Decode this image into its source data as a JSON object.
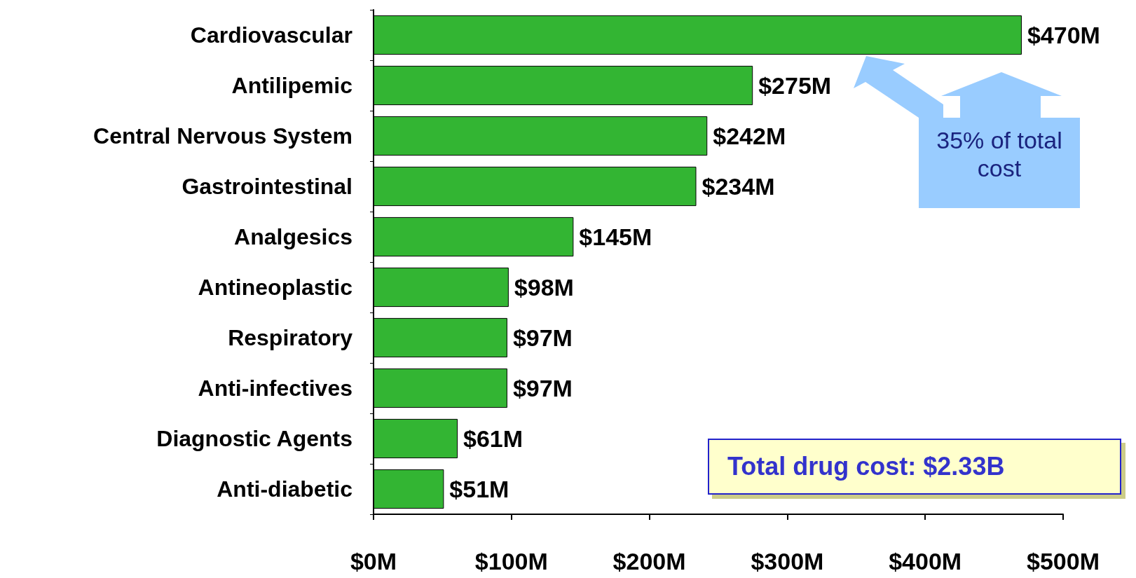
{
  "chart_data": {
    "type": "bar",
    "orientation": "horizontal",
    "categories": [
      "Cardiovascular",
      "Antilipemic",
      "Central Nervous System",
      "Gastrointestinal",
      "Analgesics",
      "Antineoplastic",
      "Respiratory",
      "Anti-infectives",
      "Diagnostic Agents",
      "Anti-diabetic"
    ],
    "values": [
      470,
      275,
      242,
      234,
      145,
      98,
      97,
      97,
      61,
      51
    ],
    "value_labels": [
      "$470M",
      "$275M",
      "$242M",
      "$234M",
      "$145M",
      "$98M",
      "$97M",
      "$97M",
      "$61M",
      "$51M"
    ],
    "color": "#33b533",
    "xlim": [
      0,
      500
    ],
    "xticks": [
      {
        "value": 0,
        "label": "$0M"
      },
      {
        "value": 100,
        "label": "$100M"
      },
      {
        "value": 200,
        "label": "$200M"
      },
      {
        "value": 300,
        "label": "$300M"
      },
      {
        "value": 400,
        "label": "$400M"
      },
      {
        "value": 500,
        "label": "$500M"
      }
    ],
    "grid": false,
    "annotations": [
      "35% of total cost",
      "Total drug cost: $2.33B"
    ]
  }
}
